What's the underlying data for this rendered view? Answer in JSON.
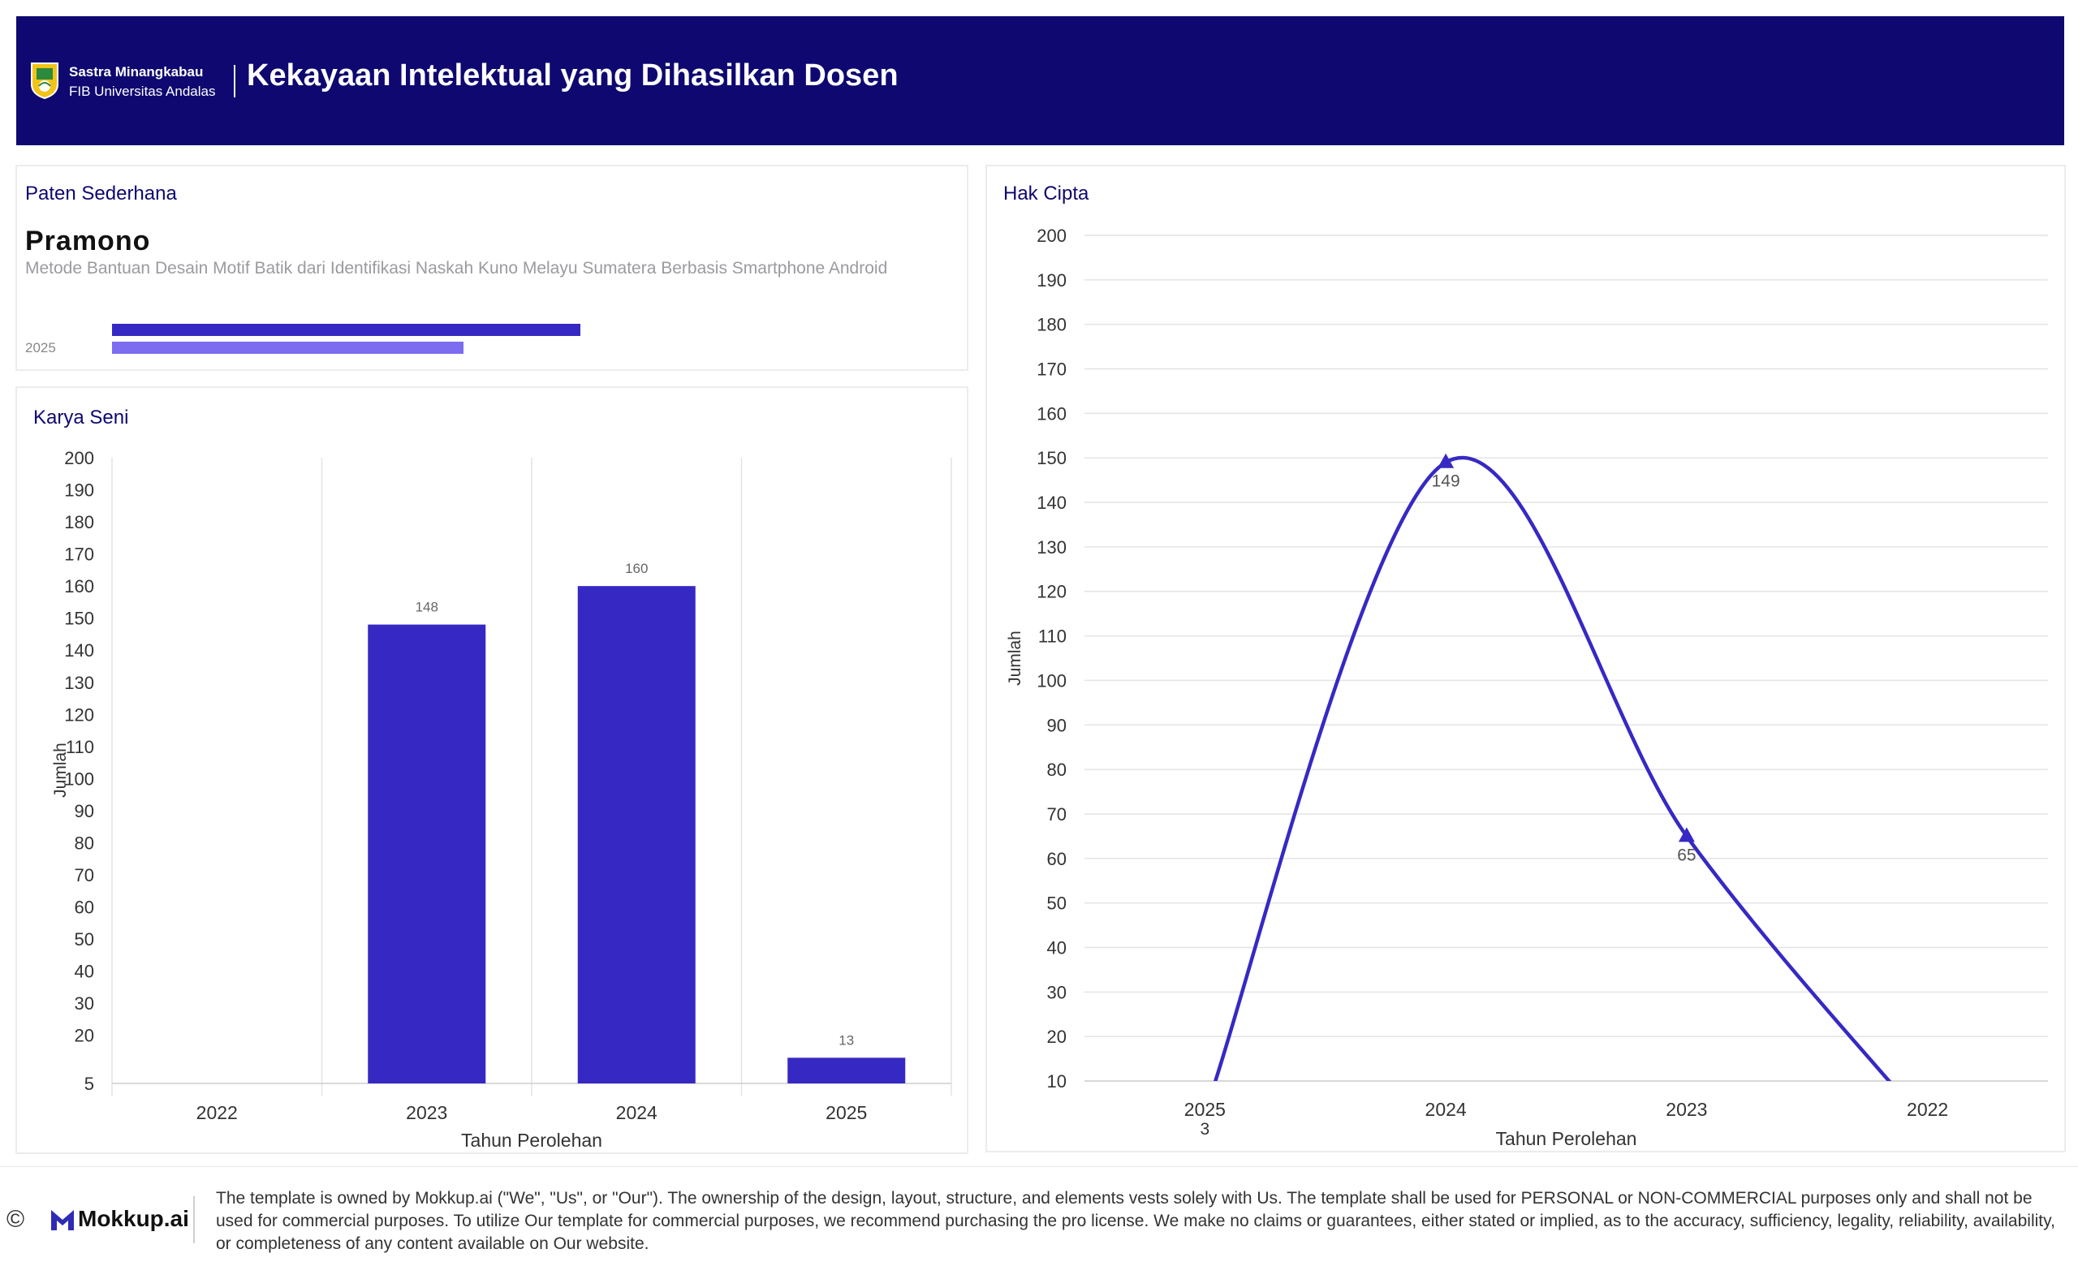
{
  "header": {
    "brand_line1": "Sastra Minangkabau",
    "brand_line2": "FIB Universitas Andalas",
    "title": "Kekayaan Intelektual yang Dihasilkan Dosen",
    "bg_color": "#0e0870"
  },
  "paten": {
    "title": "Paten Sederhana",
    "name": "Pramono",
    "description": "Metode Bantuan Desain Motif Batik dari Identifikasi Naskah Kuno Melayu Sumatera Berbasis Smartphone Android",
    "year": "2025",
    "bar_colors": [
      "#3629c3",
      "#7b6cf0"
    ]
  },
  "karya": {
    "title": "Karya Seni"
  },
  "hak": {
    "title": "Hak Cipta"
  },
  "chart_data": [
    {
      "type": "bar",
      "title": "Karya Seni",
      "categories": [
        "2022",
        "2023",
        "2024",
        "2025"
      ],
      "values": [
        null,
        148,
        160,
        13
      ],
      "data_labels": [
        "",
        "148",
        "160",
        "13"
      ],
      "xlabel": "Tahun Perolehan",
      "ylabel": "Jumlah",
      "yticks": [
        5,
        20,
        30,
        40,
        50,
        60,
        70,
        80,
        90,
        100,
        110,
        120,
        130,
        140,
        150,
        160,
        170,
        180,
        190,
        200
      ],
      "ylim": [
        5,
        200
      ],
      "grid": "vertical",
      "color": "#3629c3"
    },
    {
      "type": "line",
      "title": "Hak Cipta",
      "categories": [
        "2025",
        "2024",
        "2023",
        "2022"
      ],
      "values": [
        3,
        149,
        65,
        0
      ],
      "data_labels": [
        "3",
        "149",
        "65",
        ""
      ],
      "xlabel": "Tahun Perolehan",
      "ylabel": "Jumlah",
      "yticks": [
        10,
        20,
        30,
        40,
        50,
        60,
        70,
        80,
        90,
        100,
        110,
        120,
        130,
        140,
        150,
        160,
        170,
        180,
        190,
        200
      ],
      "ylim": [
        10,
        200
      ],
      "grid": "horizontal",
      "color": "#3629c3"
    }
  ],
  "footer": {
    "copyright_symbol": "©",
    "brand": "Mokkup.ai",
    "text": "The template is owned by Mokkup.ai (\"We\", \"Us\", or \"Our\"). The ownership of the design, layout, structure, and elements vests solely with Us. The template shall be used for PERSONAL or NON-COMMERCIAL purposes only and shall not be used for commercial purposes. To utilize Our template for commercial purposes, we recommend purchasing the pro license. We make no claims or guarantees, either stated or implied, as to the accuracy, sufficiency, legality, reliability, availability, or completeness of any content available on Our website."
  }
}
